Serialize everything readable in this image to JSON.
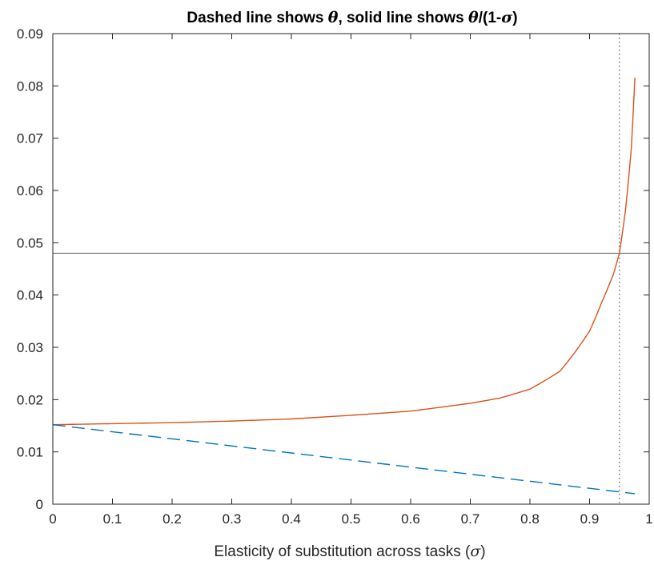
{
  "chart_data": {
    "type": "line",
    "title": {
      "parts": [
        {
          "text": "Dashed line shows ",
          "symbol": false
        },
        {
          "text": "θ",
          "symbol": true
        },
        {
          "text": ", solid line shows ",
          "symbol": false
        },
        {
          "text": "θ",
          "symbol": true
        },
        {
          "text": "/(1-",
          "symbol": false
        },
        {
          "text": "σ",
          "symbol": true
        },
        {
          "text": ")",
          "symbol": false
        }
      ]
    },
    "xlabel": {
      "prefix": "Elasticity of substitution across tasks (",
      "symbol": "σ",
      "suffix": ")"
    },
    "ylabel": "",
    "xlim": [
      0,
      1
    ],
    "ylim": [
      0,
      0.09
    ],
    "xticks": [
      "0",
      "0.1",
      "0.2",
      "0.3",
      "0.4",
      "0.5",
      "0.6",
      "0.7",
      "0.8",
      "0.9",
      "1"
    ],
    "yticks": [
      "0",
      "0.01",
      "0.02",
      "0.03",
      "0.04",
      "0.05",
      "0.06",
      "0.07",
      "0.08",
      "0.09"
    ],
    "grid": false,
    "box": true,
    "series": [
      {
        "style": "solid",
        "color": "#d95319",
        "formula": "theta/(1-sigma)",
        "x": [
          0,
          0.1,
          0.2,
          0.3,
          0.4,
          0.5,
          0.6,
          0.7,
          0.75,
          0.8,
          0.85,
          0.9,
          0.92,
          0.94,
          0.95,
          0.96,
          0.97,
          0.976
        ],
        "y": [
          0.0152,
          0.0154,
          0.0156,
          0.0159,
          0.0163,
          0.017,
          0.0178,
          0.0193,
          0.0203,
          0.022,
          0.0254,
          0.0331,
          0.0385,
          0.044,
          0.048,
          0.056,
          0.068,
          0.0816
        ]
      },
      {
        "style": "dashed",
        "color": "#0072bd",
        "formula": "theta",
        "x": [
          0,
          0.976
        ],
        "y": [
          0.0152,
          0.002
        ]
      }
    ],
    "reference_lines": [
      {
        "orientation": "horizontal",
        "value": 0.048,
        "color": "#707070",
        "style": "solid"
      },
      {
        "orientation": "vertical",
        "value": 0.95,
        "color": "#404040",
        "style": "dotted"
      }
    ]
  }
}
